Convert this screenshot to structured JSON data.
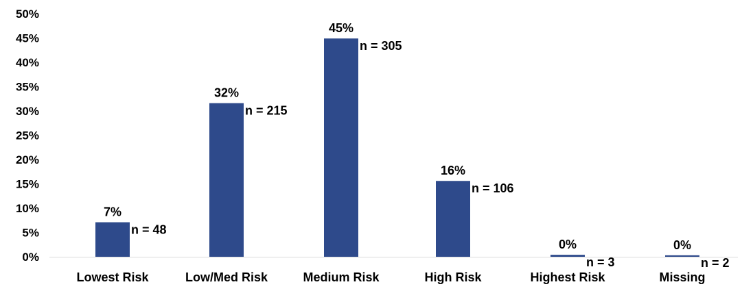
{
  "chart_data": {
    "type": "bar",
    "title": "",
    "xlabel": "",
    "ylabel": "",
    "ylim": [
      0,
      50
    ],
    "y_ticks": [
      "0%",
      "5%",
      "10%",
      "15%",
      "20%",
      "25%",
      "30%",
      "35%",
      "40%",
      "45%",
      "50%"
    ],
    "y_tick_values": [
      0,
      5,
      10,
      15,
      20,
      25,
      30,
      35,
      40,
      45,
      50
    ],
    "grid": false,
    "legend": "none",
    "bar_color": "#2E4A8B",
    "categories": [
      "Lowest Risk",
      "Low/Med Risk",
      "Medium Risk",
      "High Risk",
      "Highest Risk",
      "Missing"
    ],
    "values": [
      7.1,
      31.6,
      44.9,
      15.6,
      0.4,
      0.3
    ],
    "data_labels": [
      "7%",
      "32%",
      "45%",
      "16%",
      "0%",
      "0%"
    ],
    "counts": [
      "n = 48",
      "n = 215",
      "n = 305",
      "n = 106",
      "n = 3",
      "n = 2"
    ]
  }
}
